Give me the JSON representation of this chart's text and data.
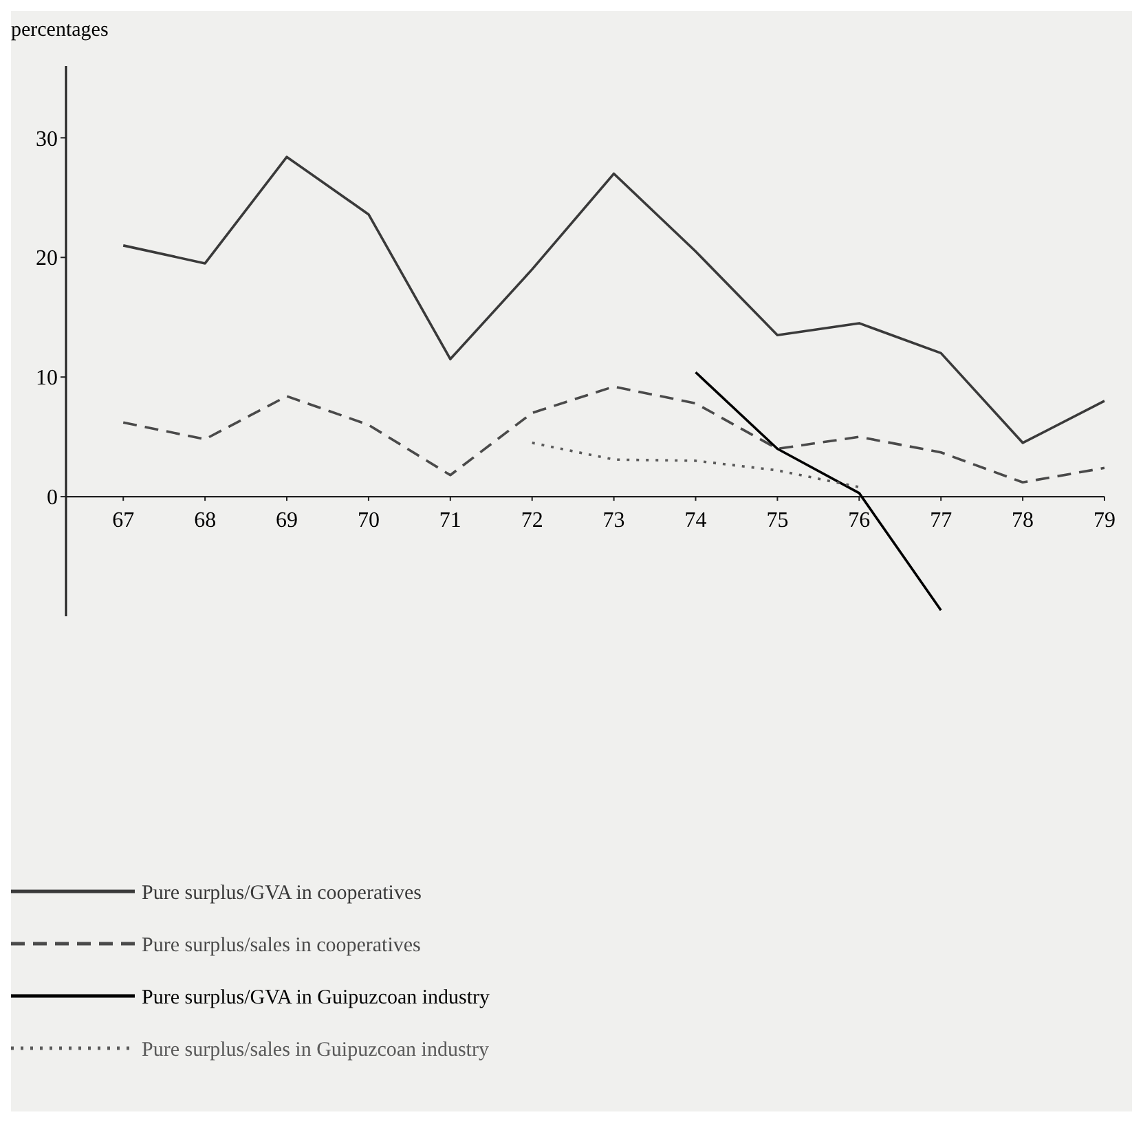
{
  "chart_data": {
    "type": "line",
    "ylabel": "percentages",
    "xlim": [
      66.3,
      79
    ],
    "xticks": [
      67,
      68,
      69,
      70,
      71,
      72,
      73,
      74,
      75,
      76,
      77,
      78,
      79
    ],
    "ylim": [
      -10,
      36
    ],
    "yticks": [
      0,
      10,
      20,
      30
    ],
    "grid": false,
    "legend": "bottom left",
    "marker": "none",
    "series": [
      {
        "name": "Pure surplus/GVA in cooperatives",
        "color": "#3a3a3a",
        "line_style": "solid",
        "x": [
          67,
          68,
          69,
          70,
          71,
          72,
          73,
          74,
          75,
          76,
          77,
          78,
          79
        ],
        "values": [
          21,
          19.5,
          28.4,
          23.6,
          11.5,
          19,
          27,
          20.5,
          13.5,
          14.5,
          12,
          4.5,
          8
        ]
      },
      {
        "name": "Pure surplus/sales in cooperatives",
        "color": "#4a4a4a",
        "line_style": "dashed",
        "x": [
          67,
          68,
          69,
          70,
          71,
          72,
          73,
          74,
          75,
          76,
          77,
          78,
          79
        ],
        "values": [
          6.2,
          4.8,
          8.4,
          6,
          1.8,
          7,
          9.2,
          7.8,
          4,
          5,
          3.7,
          1.2,
          2.4
        ]
      },
      {
        "name": "Pure surplus/GVA in Guipuzcoan industry",
        "color": "#000000",
        "line_style": "solid",
        "x": [
          74,
          75,
          76,
          77
        ],
        "values": [
          10.4,
          4,
          0.3,
          -9.5
        ]
      },
      {
        "name": "Pure surplus/sales in Guipuzcoan industry",
        "color": "#5a5a5a",
        "line_style": "dotted",
        "x": [
          72,
          73,
          74,
          75,
          76
        ],
        "values": [
          4.5,
          3.1,
          3,
          2.2,
          0.8
        ]
      }
    ]
  }
}
